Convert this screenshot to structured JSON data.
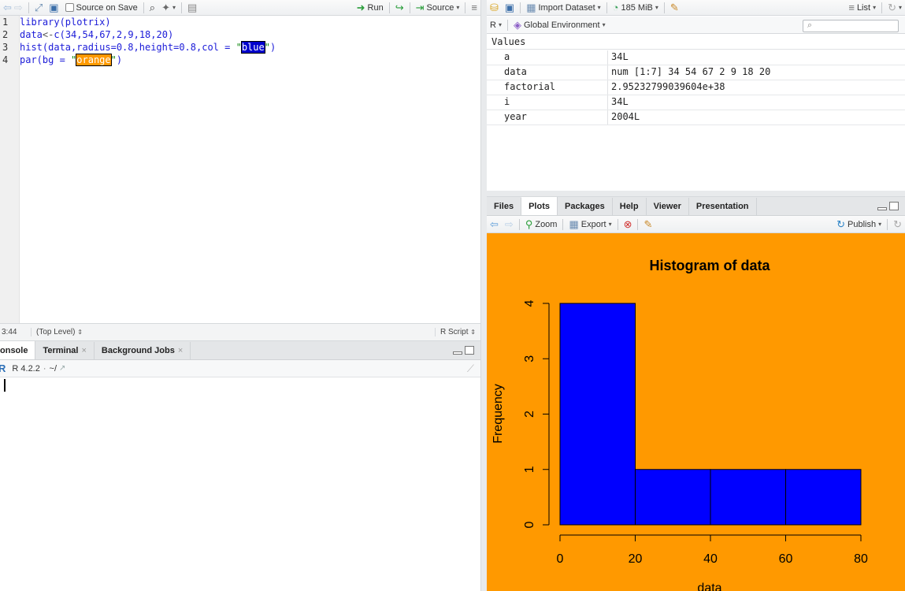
{
  "editor": {
    "toolbar": {
      "source_on_save": "Source on Save",
      "run": "Run",
      "source": "Source"
    },
    "lines": [
      {
        "num": "1",
        "parts": [
          [
            "kw",
            "library(plotrix)"
          ]
        ]
      },
      {
        "num": "2",
        "parts": [
          [
            "kw",
            "data"
          ],
          [
            "op",
            "<-"
          ],
          [
            "kw",
            "c("
          ],
          [
            "num",
            "34"
          ],
          [
            "kw",
            ","
          ],
          [
            "num",
            "54"
          ],
          [
            "kw",
            ","
          ],
          [
            "num",
            "67"
          ],
          [
            "kw",
            ","
          ],
          [
            "num",
            "2"
          ],
          [
            "kw",
            ","
          ],
          [
            "num",
            "9"
          ],
          [
            "kw",
            ","
          ],
          [
            "num",
            "18"
          ],
          [
            "kw",
            ","
          ],
          [
            "num",
            "20"
          ],
          [
            "kw",
            ")"
          ]
        ]
      },
      {
        "num": "3",
        "parts": [
          [
            "kw",
            "hist(data,radius="
          ],
          [
            "num",
            "0.8"
          ],
          [
            "kw",
            ",height="
          ],
          [
            "num",
            "0.8"
          ],
          [
            "kw",
            ",col = "
          ],
          [
            "str",
            "\""
          ],
          [
            "hlb",
            "blue"
          ],
          [
            "str",
            "\""
          ],
          [
            "kw",
            ")"
          ]
        ]
      },
      {
        "num": "4",
        "parts": [
          [
            "kw",
            "par(bg = "
          ],
          [
            "str",
            "\""
          ],
          [
            "hlo",
            "orange"
          ],
          [
            "str",
            "\""
          ],
          [
            "kw",
            ")"
          ]
        ]
      }
    ],
    "status": {
      "position": "3:44",
      "scope": "(Top Level)",
      "type": "R Script"
    }
  },
  "console": {
    "tabs": [
      "onsole",
      "Terminal",
      "Background Jobs"
    ],
    "r_version": "R 4.2.2",
    "path": "~/"
  },
  "environment": {
    "toolbar": {
      "import_dataset": "Import Dataset",
      "memory": "185 MiB",
      "view_mode": "List"
    },
    "language": "R",
    "scope": "Global Environment",
    "section": "Values",
    "rows": [
      {
        "name": "a",
        "value": "34L"
      },
      {
        "name": "data",
        "value": "num [1:7] 34 54 67 2 9 18 20"
      },
      {
        "name": "factorial",
        "value": "2.95232799039604e+38"
      },
      {
        "name": "i",
        "value": "34L"
      },
      {
        "name": "year",
        "value": "2004L"
      }
    ]
  },
  "plots_pane": {
    "tabs": [
      "Files",
      "Plots",
      "Packages",
      "Help",
      "Viewer",
      "Presentation"
    ],
    "active_tab": "Plots",
    "toolbar": {
      "zoom": "Zoom",
      "export": "Export",
      "publish": "Publish"
    }
  },
  "chart_data": {
    "type": "bar",
    "title": "Histogram of data",
    "xlabel": "data",
    "ylabel": "Frequency",
    "bins": [
      [
        0,
        20
      ],
      [
        20,
        40
      ],
      [
        40,
        60
      ],
      [
        60,
        80
      ]
    ],
    "values": [
      4,
      1,
      1,
      1
    ],
    "xticks": [
      "0",
      "20",
      "40",
      "60",
      "80"
    ],
    "yticks": [
      "0",
      "1",
      "2",
      "3",
      "4"
    ],
    "xlim": [
      0,
      80
    ],
    "ylim": [
      0,
      4
    ],
    "bar_color": "#0000ff",
    "background": "#ff9900"
  }
}
